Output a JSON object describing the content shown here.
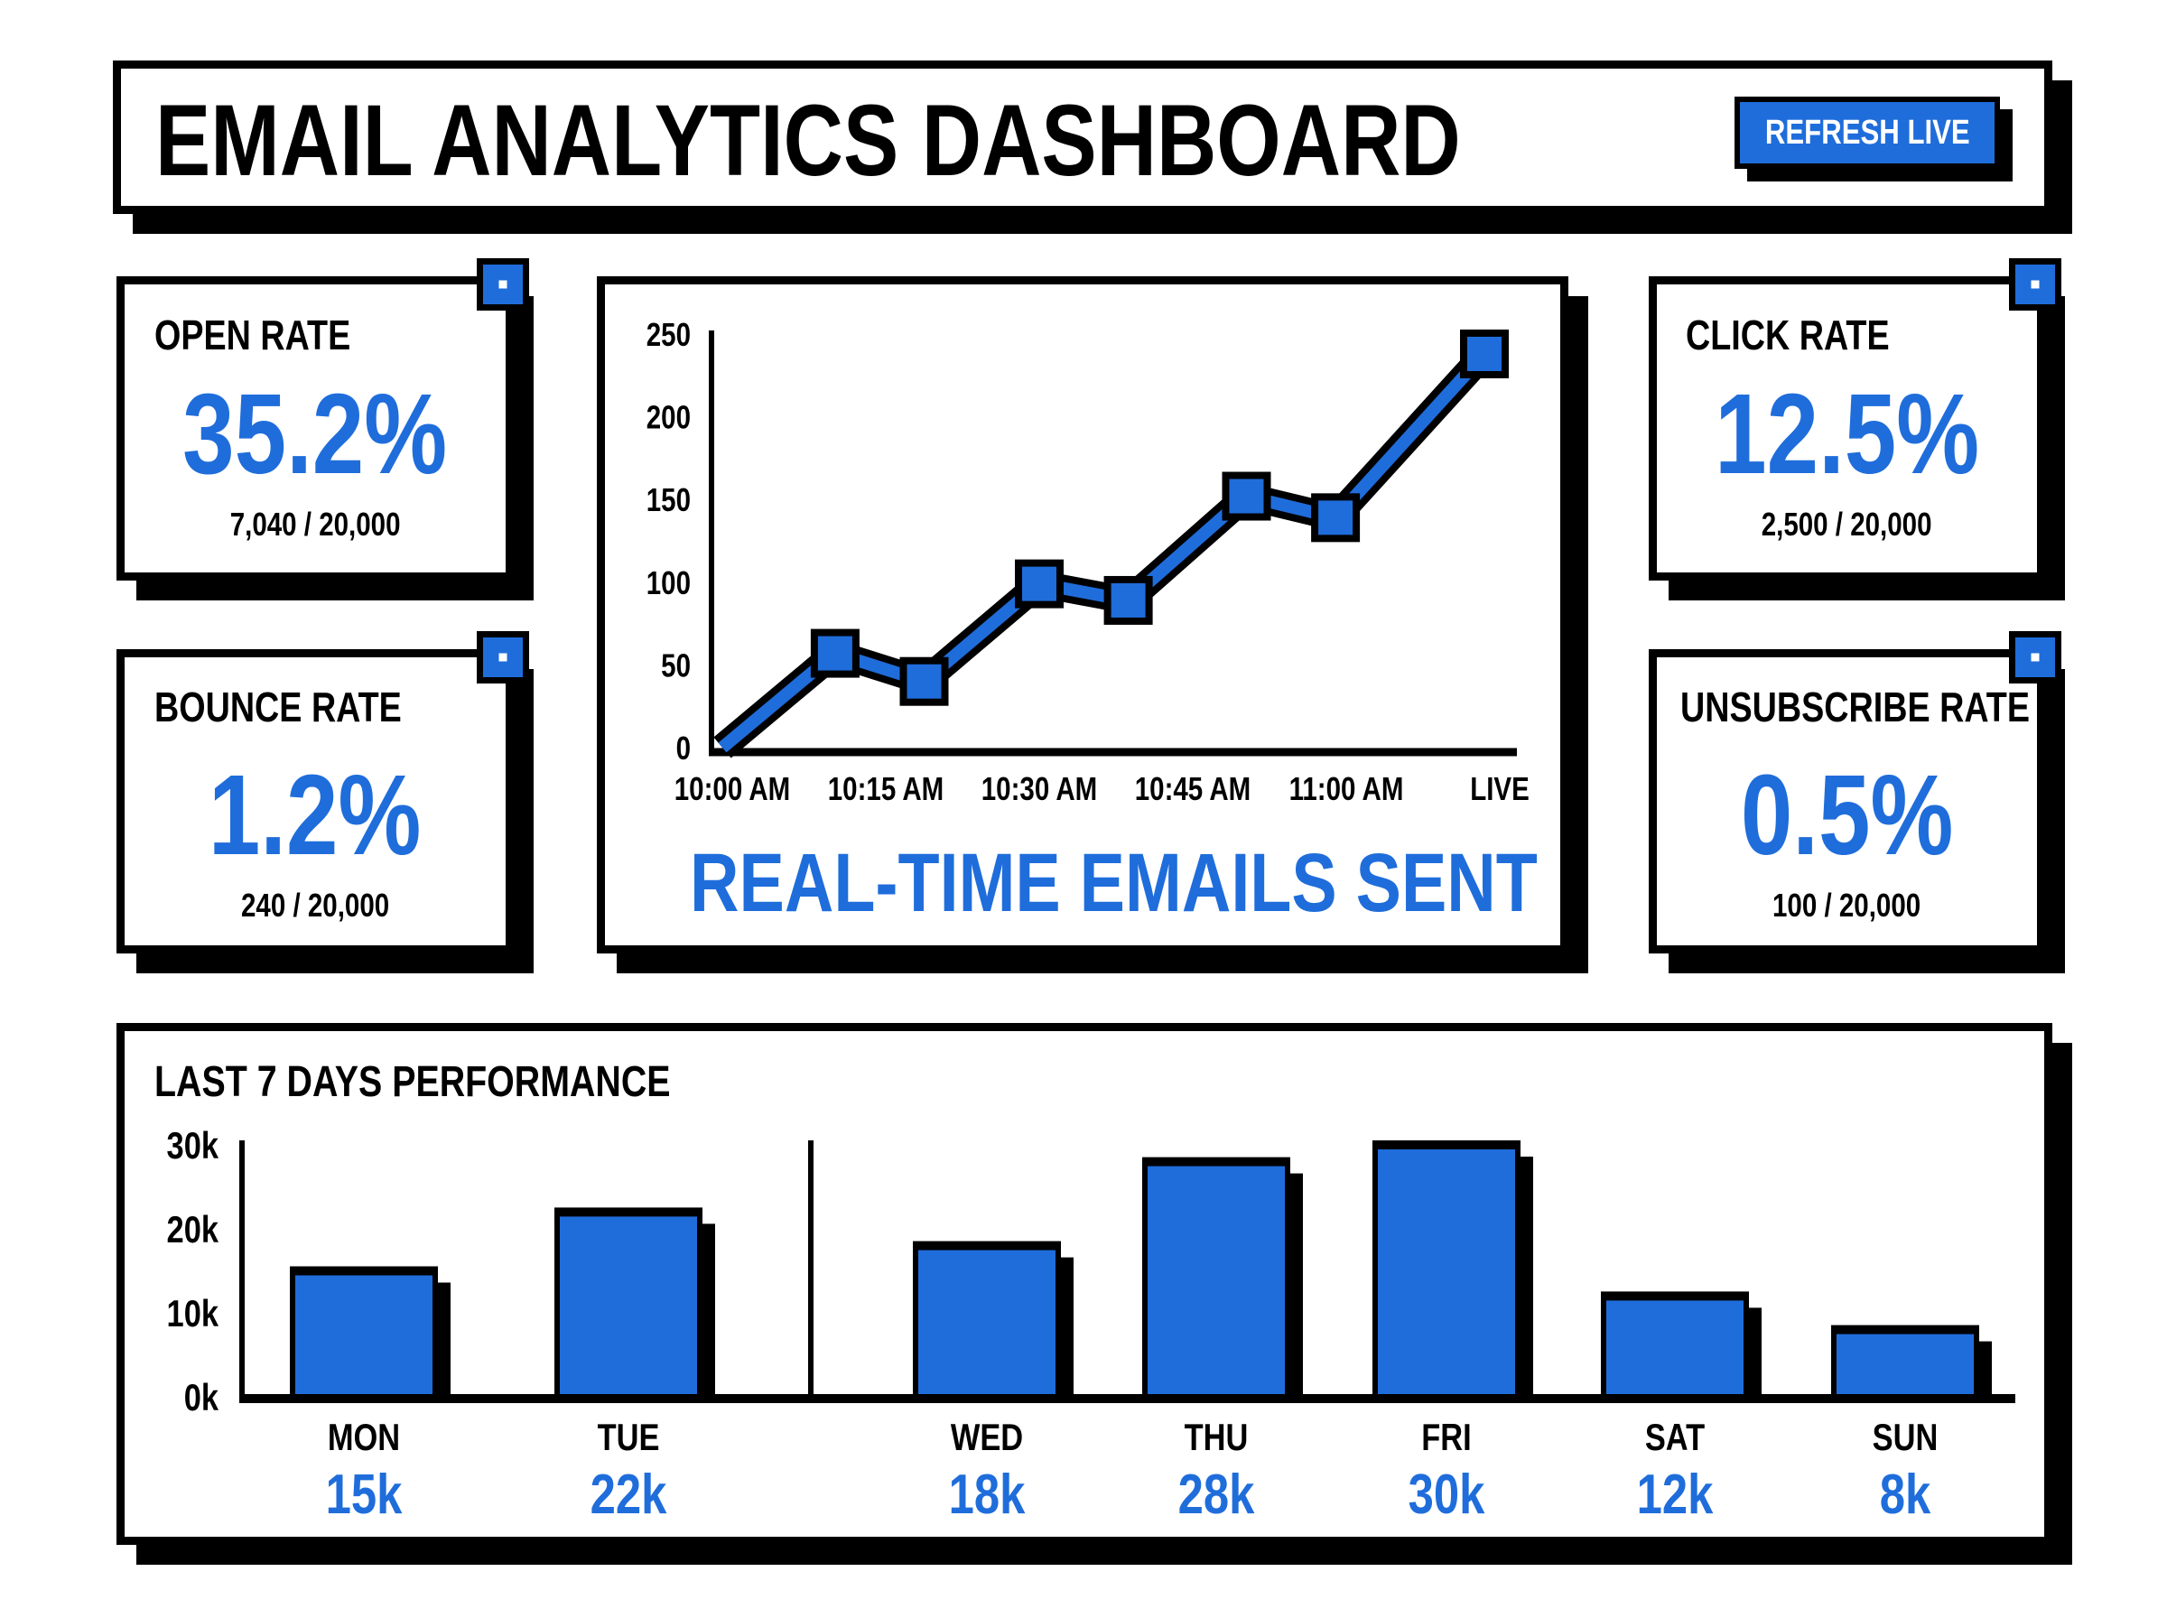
{
  "header": {
    "title": "EMAIL ANALYTICS DASHBOARD",
    "refresh_label": "REFRESH LIVE"
  },
  "colors": {
    "accent": "#1f6ddb",
    "ink": "#000000",
    "background": "#ffffff"
  },
  "cards": {
    "open_rate": {
      "label": "OPEN RATE",
      "value": "35.2%",
      "detail": "7,040 / 20,000"
    },
    "click_rate": {
      "label": "CLICK RATE",
      "value": "12.5%",
      "detail": "2,500 / 20,000"
    },
    "bounce_rate": {
      "label": "BOUNCE RATE",
      "value": "1.2%",
      "detail": "240 / 20,000"
    },
    "unsubscribe_rate": {
      "label": "UNSUBSCRIBE RATE",
      "value": "0.5%",
      "detail": "100 / 20,000"
    }
  },
  "chart_data": [
    {
      "type": "line",
      "title": "REAL-TIME EMAILS SENT",
      "x_tick_labels": [
        "10:00 AM",
        "10:15 AM",
        "10:30 AM",
        "10:45 AM",
        "11:00 AM",
        "LIVE"
      ],
      "y_tick_labels": [
        "0",
        "50",
        "100",
        "150",
        "200",
        "250"
      ],
      "ylim": [
        0,
        250
      ],
      "grid": false,
      "series": [
        {
          "x": [
            0,
            0.67,
            1.25,
            2.0,
            2.58,
            3.35,
            3.93,
            4.9
          ],
          "y": [
            0,
            57,
            40,
            99,
            89,
            152,
            139,
            238
          ]
        }
      ]
    },
    {
      "type": "bar",
      "title": "LAST 7 DAYS PERFORMANCE",
      "categories": [
        "MON",
        "TUE",
        "WED",
        "THU",
        "FRI",
        "SAT",
        "SUN"
      ],
      "values": [
        15000,
        22000,
        18000,
        28000,
        30000,
        12000,
        8000
      ],
      "data_labels": [
        "15k",
        "22k",
        "18k",
        "28k",
        "30k",
        "12k",
        "8k"
      ],
      "y_tick_labels": [
        "0k",
        "10k",
        "20k",
        "30k"
      ],
      "ylim": [
        0,
        30000
      ],
      "grid": false
    }
  ]
}
